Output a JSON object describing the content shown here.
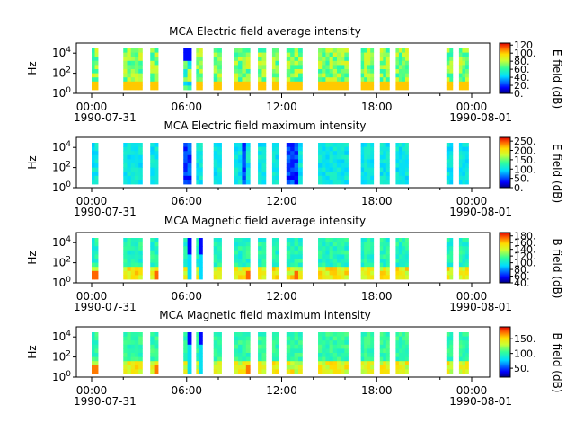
{
  "x_axis": {
    "ticks": [
      "00:00",
      "06:00",
      "12:00",
      "18:00",
      "00:00"
    ],
    "start_date": "1990-07-31",
    "end_date": "1990-08-01"
  },
  "chart_data": [
    {
      "type": "heatmap",
      "title": "MCA  Electric field average intensity",
      "ylabel": "Hz",
      "y_ticks": [
        "10^0",
        "10^2",
        "10^4"
      ],
      "colorbar_label": "E field (dB)",
      "colorbar_ticks": [
        "0.",
        "20.",
        "40.",
        "60.",
        "80.",
        "100.",
        "120"
      ],
      "clim": [
        0,
        125
      ],
      "data_intervals_hours": [
        [
          0.0,
          0.4
        ],
        [
          2.0,
          3.2
        ],
        [
          3.7,
          4.2
        ],
        [
          5.8,
          6.3
        ],
        [
          6.6,
          7.0
        ],
        [
          7.7,
          8.2
        ],
        [
          9.0,
          10.0
        ],
        [
          10.5,
          11.0
        ],
        [
          11.4,
          11.8
        ],
        [
          12.3,
          13.3
        ],
        [
          14.3,
          16.2
        ],
        [
          17.0,
          17.8
        ],
        [
          18.2,
          18.8
        ],
        [
          19.2,
          20.0
        ],
        [
          22.4,
          22.8
        ],
        [
          23.2,
          23.8
        ]
      ]
    },
    {
      "type": "heatmap",
      "title": "MCA  Electric field maximum intensity",
      "ylabel": "Hz",
      "y_ticks": [
        "10^0",
        "10^2",
        "10^4"
      ],
      "colorbar_label": "E field (dB)",
      "colorbar_ticks": [
        "0.",
        "50.",
        "100.",
        "150.",
        "200.",
        "250."
      ],
      "clim": [
        0,
        270
      ],
      "data_intervals_hours": [
        [
          0.0,
          0.4
        ],
        [
          2.0,
          3.2
        ],
        [
          3.7,
          4.2
        ],
        [
          5.8,
          6.3
        ],
        [
          6.6,
          7.0
        ],
        [
          7.7,
          8.2
        ],
        [
          9.0,
          10.0
        ],
        [
          10.5,
          11.0
        ],
        [
          11.4,
          11.8
        ],
        [
          12.3,
          13.3
        ],
        [
          14.3,
          16.2
        ],
        [
          17.0,
          17.8
        ],
        [
          18.2,
          18.8
        ],
        [
          19.2,
          20.0
        ],
        [
          22.4,
          22.8
        ],
        [
          23.2,
          23.8
        ]
      ]
    },
    {
      "type": "heatmap",
      "title": "MCA  Magnetic field average intensity",
      "ylabel": "Hz",
      "y_ticks": [
        "10^0",
        "10^2",
        "10^4"
      ],
      "colorbar_label": "B field (dB)",
      "colorbar_ticks": [
        "40.",
        "60.",
        "80.",
        "100.",
        "120.",
        "140.",
        "160.",
        "180."
      ],
      "clim": [
        40,
        190
      ],
      "data_intervals_hours": [
        [
          0.0,
          0.4
        ],
        [
          2.0,
          3.2
        ],
        [
          3.7,
          4.2
        ],
        [
          5.8,
          6.3
        ],
        [
          6.6,
          7.0
        ],
        [
          7.7,
          8.2
        ],
        [
          9.0,
          10.0
        ],
        [
          10.5,
          11.0
        ],
        [
          11.4,
          11.8
        ],
        [
          12.3,
          13.3
        ],
        [
          14.3,
          16.2
        ],
        [
          17.0,
          17.8
        ],
        [
          18.2,
          18.8
        ],
        [
          19.2,
          20.0
        ],
        [
          22.4,
          22.8
        ],
        [
          23.2,
          23.8
        ]
      ]
    },
    {
      "type": "heatmap",
      "title": "MCA  Magnetic field maximum intensity",
      "ylabel": "Hz",
      "y_ticks": [
        "10^0",
        "10^2",
        "10^4"
      ],
      "colorbar_label": "B field (dB)",
      "colorbar_ticks": [
        "50.",
        "100.",
        "150."
      ],
      "clim": [
        20,
        190
      ],
      "data_intervals_hours": [
        [
          0.0,
          0.4
        ],
        [
          2.0,
          3.2
        ],
        [
          3.7,
          4.2
        ],
        [
          5.8,
          6.3
        ],
        [
          6.6,
          7.0
        ],
        [
          7.7,
          8.2
        ],
        [
          9.0,
          10.0
        ],
        [
          10.5,
          11.0
        ],
        [
          11.4,
          11.8
        ],
        [
          12.3,
          13.3
        ],
        [
          14.3,
          16.2
        ],
        [
          17.0,
          17.8
        ],
        [
          18.2,
          18.8
        ],
        [
          19.2,
          20.0
        ],
        [
          22.4,
          22.8
        ],
        [
          23.2,
          23.8
        ]
      ]
    }
  ]
}
